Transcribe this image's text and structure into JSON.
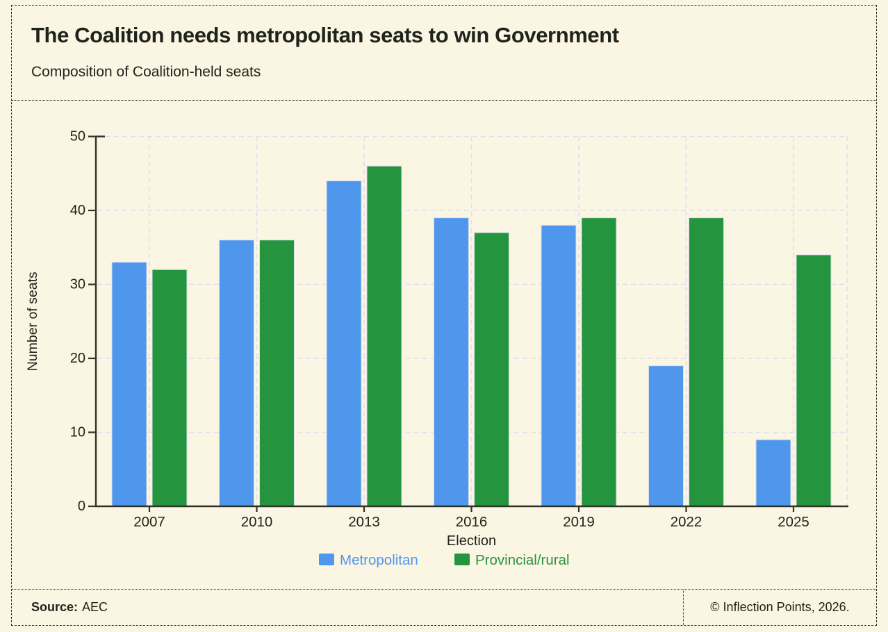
{
  "header": {
    "title": "The Coalition needs metropolitan seats to win Government",
    "subtitle": "Composition of Coalition-held seats"
  },
  "footer": {
    "source_label": "Source:",
    "source_value": "AEC",
    "copyright": "© Inflection Points, 2026."
  },
  "theme": {
    "background": "#fbf5e3",
    "ink": "#20231b",
    "axis": "#30332a",
    "gridline": "#dce0ed"
  },
  "chart_data": {
    "type": "bar",
    "title": "The Coalition needs metropolitan seats to win Government",
    "subtitle": "Composition of Coalition-held seats",
    "categories": [
      "2007",
      "2010",
      "2013",
      "2016",
      "2019",
      "2022",
      "2025"
    ],
    "series": [
      {
        "name": "Metropolitan",
        "color": "#4f97ec",
        "values": [
          33,
          36,
          44,
          39,
          38,
          19,
          9
        ]
      },
      {
        "name": "Provincial/rural",
        "color": "#24943f",
        "values": [
          32,
          36,
          46,
          37,
          39,
          39,
          34
        ]
      }
    ],
    "xlabel": "Election",
    "ylabel": "Number of seats",
    "ylim": [
      0,
      50
    ],
    "yticks": [
      0,
      10,
      20,
      30,
      40,
      50
    ],
    "grid": true,
    "grid_style": "dashed",
    "legend_position": "bottom"
  }
}
